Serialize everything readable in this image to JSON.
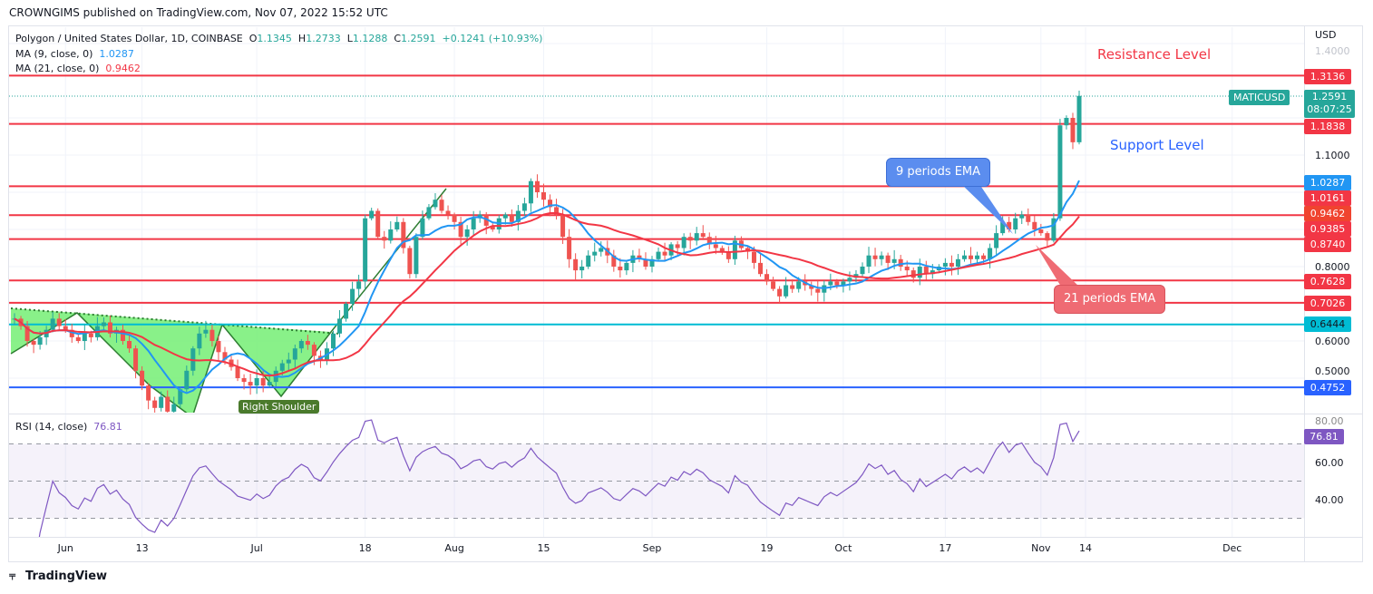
{
  "header": {
    "published": "CROWNGIMS published on TradingView.com, Nov 07, 2022 15:52 UTC"
  },
  "legend": {
    "symbol": "Polygon / United States Dollar, 1D, COINBASE",
    "o_label": "O",
    "o": "1.1345",
    "h_label": "H",
    "h": "1.2733",
    "l_label": "L",
    "l": "1.1288",
    "c_label": "C",
    "c": "1.2591",
    "change": "+0.1241 (+10.93%)",
    "ma9_label": "MA (9, close, 0)",
    "ma9_value": "1.0287",
    "ma21_label": "MA (21, close, 0)",
    "ma21_value": "0.9462",
    "rsi_label": "RSI (14, close)",
    "rsi_value": "76.81"
  },
  "price_axis": {
    "currency": "USD",
    "ticks": [
      "1.4000",
      "1.1000",
      "0.8000",
      "0.6000",
      "0.5000"
    ],
    "symbol_tag": "MATICUSD",
    "last_price": "1.2591",
    "countdown": "08:07:25",
    "ma9_tag": "1.0287",
    "ma21_tag": "0.9462"
  },
  "rsi_axis": {
    "ticks": [
      "80.00",
      "60.00",
      "40.00"
    ],
    "current": "76.81"
  },
  "time_axis": {
    "labels": [
      "Jun",
      "13",
      "Jul",
      "18",
      "Aug",
      "15",
      "Sep",
      "19",
      "Oct",
      "17",
      "Nov",
      "14",
      "Dec"
    ]
  },
  "levels": [
    {
      "value": "1.3136",
      "color": "#f23645"
    },
    {
      "value": "1.1838",
      "color": "#f23645"
    },
    {
      "value": "1.0161",
      "color": "#f23645"
    },
    {
      "value": "0.9385",
      "color": "#f23645"
    },
    {
      "value": "0.8740",
      "color": "#f23645"
    },
    {
      "value": "0.7628",
      "color": "#f23645"
    },
    {
      "value": "0.7026",
      "color": "#f23645"
    },
    {
      "value": "0.6444",
      "color": "#00bcd4"
    },
    {
      "value": "0.4752",
      "color": "#2962ff"
    }
  ],
  "annotations": {
    "resistance": "Resistance Level",
    "support": "Support Level",
    "ema9": "9 periods EMA",
    "ema21": "21 periods EMA",
    "right_shoulder": "Right Shoulder"
  },
  "footer": {
    "brand": "TradingView"
  },
  "colors": {
    "up": "#26a69a",
    "down": "#ef5350",
    "ma9": "#2196f3",
    "ma21": "#f23645",
    "rsi": "#7e57c2"
  },
  "chart_data": {
    "type": "candlestick",
    "title": "Polygon / United States Dollar, 1D, COINBASE",
    "start_date": "2022-05-24",
    "end_date": "2022-11-07",
    "ylabel": "USD",
    "ylim": [
      0.4,
      1.42
    ],
    "rsi_ylim": [
      20,
      85
    ],
    "closes": [
      0.66,
      0.64,
      0.6,
      0.59,
      0.61,
      0.63,
      0.66,
      0.64,
      0.63,
      0.61,
      0.6,
      0.62,
      0.61,
      0.64,
      0.65,
      0.62,
      0.63,
      0.6,
      0.58,
      0.52,
      0.48,
      0.44,
      0.42,
      0.45,
      0.41,
      0.43,
      0.47,
      0.52,
      0.58,
      0.62,
      0.63,
      0.6,
      0.57,
      0.55,
      0.53,
      0.5,
      0.49,
      0.48,
      0.5,
      0.48,
      0.49,
      0.52,
      0.54,
      0.55,
      0.58,
      0.6,
      0.59,
      0.56,
      0.55,
      0.58,
      0.62,
      0.66,
      0.7,
      0.74,
      0.76,
      0.93,
      0.95,
      0.88,
      0.87,
      0.9,
      0.92,
      0.85,
      0.78,
      0.88,
      0.93,
      0.96,
      0.98,
      0.95,
      0.94,
      0.92,
      0.88,
      0.9,
      0.93,
      0.94,
      0.91,
      0.9,
      0.93,
      0.94,
      0.92,
      0.95,
      0.97,
      1.03,
      1.0,
      0.98,
      0.96,
      0.94,
      0.88,
      0.82,
      0.79,
      0.8,
      0.83,
      0.84,
      0.85,
      0.83,
      0.8,
      0.79,
      0.81,
      0.83,
      0.82,
      0.8,
      0.82,
      0.84,
      0.83,
      0.86,
      0.85,
      0.88,
      0.87,
      0.89,
      0.88,
      0.86,
      0.85,
      0.84,
      0.82,
      0.87,
      0.85,
      0.84,
      0.81,
      0.78,
      0.76,
      0.74,
      0.72,
      0.75,
      0.74,
      0.76,
      0.75,
      0.74,
      0.73,
      0.75,
      0.76,
      0.75,
      0.76,
      0.77,
      0.78,
      0.8,
      0.83,
      0.82,
      0.83,
      0.81,
      0.82,
      0.8,
      0.79,
      0.77,
      0.8,
      0.78,
      0.79,
      0.8,
      0.81,
      0.8,
      0.82,
      0.83,
      0.82,
      0.83,
      0.82,
      0.85,
      0.89,
      0.92,
      0.9,
      0.93,
      0.94,
      0.92,
      0.9,
      0.89,
      0.87,
      0.93,
      1.18,
      1.2,
      1.1345,
      1.2591
    ],
    "last_candle": {
      "open": 1.1345,
      "high": 1.2733,
      "low": 1.1288,
      "close": 1.2591
    },
    "indicators": [
      "MA 9",
      "MA 21",
      "RSI 14"
    ],
    "rsi_bands": [
      70,
      50,
      30
    ]
  }
}
